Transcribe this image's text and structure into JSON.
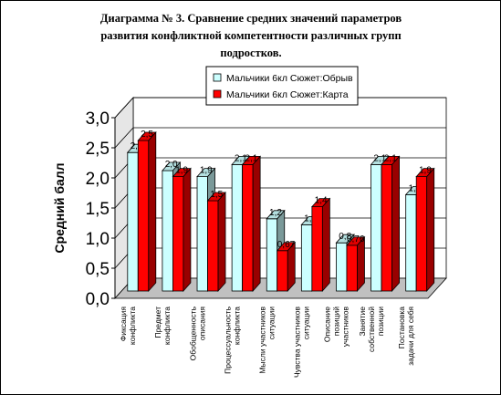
{
  "chart_data": {
    "type": "bar",
    "title_lines": [
      "Диаграмма № 3.  Сравнение средних значений параметров",
      "развития конфликтной компетентности различных групп",
      "подростков."
    ],
    "ylabel": "Средний балл",
    "ylim": [
      0,
      3
    ],
    "yticks": [
      "0,0",
      "0,5",
      "1,0",
      "1,5",
      "2,0",
      "2,5",
      "3,0"
    ],
    "grid": true,
    "legend_position": "top",
    "categories": [
      [
        "Фиксация",
        "конфликта"
      ],
      [
        "Предмет",
        "конфликта"
      ],
      [
        "Обобщенность",
        "описания"
      ],
      [
        "Процессуальность",
        "конфликта"
      ],
      [
        "Мысли участников",
        "ситуации"
      ],
      [
        "Чувства участников",
        "ситуации"
      ],
      [
        "Описание",
        "позиций",
        "участников"
      ],
      [
        "Занятие",
        "собственной",
        "позиции"
      ],
      [
        "Постановка",
        "задачи для себя"
      ]
    ],
    "series": [
      {
        "name": "Мальчики 6кл Сюжет:Обрыв",
        "color": "#ccffff",
        "values": [
          2.3,
          2.0,
          1.9,
          2.1,
          1.2,
          1.1,
          0.8,
          2.1,
          1.6
        ],
        "labels": [
          "2,3",
          "2,0",
          "1,9",
          "2,1",
          "1,2",
          "1,1",
          "0,8",
          "2,1",
          "1,6"
        ]
      },
      {
        "name": "Мальчики 6кл Сюжет:Карта",
        "color": "#ff0000",
        "values": [
          2.5,
          1.9,
          1.5,
          2.1,
          0.67,
          1.4,
          0.76,
          2.1,
          1.9
        ],
        "labels": [
          "2,5",
          "1,9",
          "1,5",
          "2,1",
          "0,67",
          "1,4",
          "0,76",
          "2,1",
          "1,9"
        ]
      }
    ]
  }
}
